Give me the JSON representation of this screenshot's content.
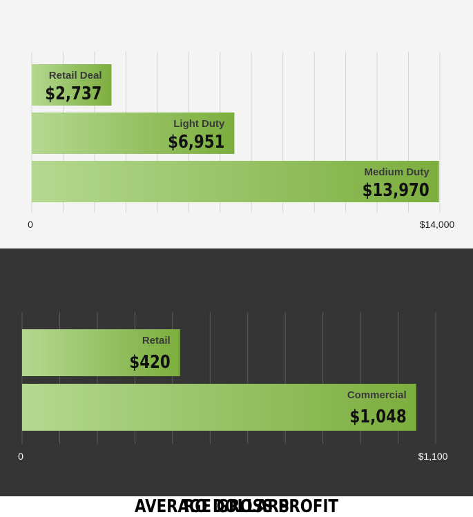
{
  "chart_data": [
    {
      "type": "bar",
      "orientation": "horizontal",
      "title": "AVERAGE GROSS PROFIT",
      "categories": [
        "Retail Deal",
        "Light Duty",
        "Medium Duty"
      ],
      "values": [
        2737,
        6951,
        13970
      ],
      "value_labels": [
        "$2,737",
        "$6,951",
        "$13,970"
      ],
      "xlim": [
        0,
        14000
      ],
      "axis_labels": {
        "min": "0",
        "max": "$14,000"
      },
      "grid": true,
      "colors": {
        "bar_light": "#b4d890",
        "bar_dark": "#7cae3e",
        "background": "#f4f4f4",
        "grid": "#d4d4d4",
        "text": "#1a1a1a"
      }
    },
    {
      "type": "bar",
      "orientation": "horizontal",
      "title": "RO DOLLARS",
      "categories": [
        "Retail",
        "Commercial"
      ],
      "values": [
        420,
        1048
      ],
      "value_labels": [
        "$420",
        "$1,048"
      ],
      "xlim": [
        0,
        1100
      ],
      "axis_labels": {
        "min": "0",
        "max": "$1,100"
      },
      "grid": true,
      "colors": {
        "bar_light": "#b4d890",
        "bar_dark": "#7cae3e",
        "background": "#353535",
        "grid": "#5c5c5c",
        "text": "#ffffff"
      }
    }
  ]
}
